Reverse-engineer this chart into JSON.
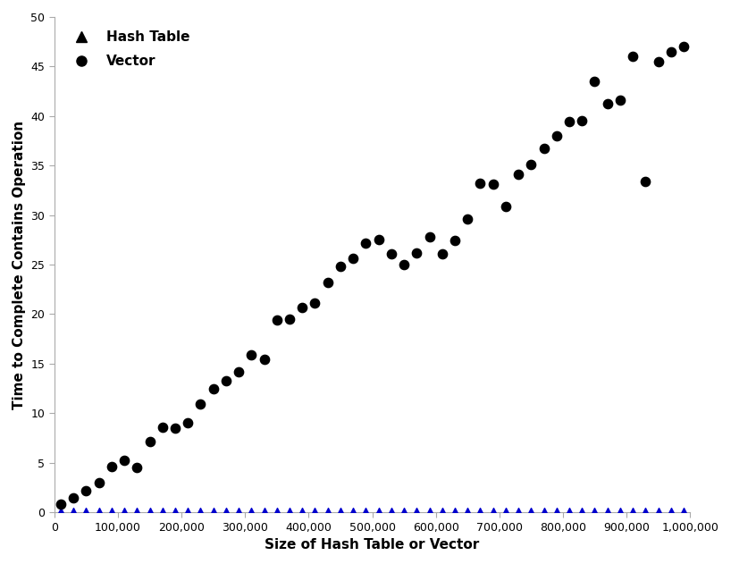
{
  "title": "",
  "xlabel": "Size of Hash Table or Vector",
  "ylabel": "Time to Complete Contains Operation",
  "xlim": [
    0,
    1000000
  ],
  "ylim": [
    0,
    50
  ],
  "xticks": [
    0,
    100000,
    200000,
    300000,
    400000,
    500000,
    600000,
    700000,
    800000,
    900000,
    1000000
  ],
  "yticks": [
    0,
    5,
    10,
    15,
    20,
    25,
    30,
    35,
    40,
    45,
    50
  ],
  "vector_x": [
    10000,
    30000,
    50000,
    70000,
    90000,
    110000,
    130000,
    150000,
    170000,
    190000,
    210000,
    230000,
    250000,
    270000,
    290000,
    310000,
    330000,
    350000,
    370000,
    390000,
    410000,
    430000,
    450000,
    470000,
    490000,
    510000,
    530000,
    550000,
    570000,
    590000,
    610000,
    630000,
    650000,
    670000,
    690000,
    710000,
    730000,
    750000,
    770000,
    790000,
    810000,
    830000,
    850000,
    870000,
    890000,
    910000,
    930000,
    950000,
    970000,
    990000
  ],
  "vector_y": [
    0.8,
    1.5,
    2.2,
    3.0,
    4.6,
    5.2,
    4.5,
    7.1,
    8.6,
    8.5,
    9.0,
    10.9,
    12.5,
    13.3,
    14.2,
    15.9,
    15.4,
    19.4,
    19.5,
    20.7,
    21.1,
    23.2,
    24.8,
    25.6,
    27.2,
    27.5,
    26.1,
    25.0,
    26.2,
    27.8,
    26.1,
    27.4,
    29.6,
    33.2,
    33.1,
    30.9,
    34.1,
    35.1,
    36.7,
    38.0,
    39.4,
    39.5,
    43.5,
    41.2,
    41.6,
    46.0,
    33.4,
    45.5,
    46.5,
    47.0
  ],
  "hash_x": [
    10000,
    30000,
    50000,
    70000,
    90000,
    110000,
    130000,
    150000,
    170000,
    190000,
    210000,
    230000,
    250000,
    270000,
    290000,
    310000,
    330000,
    350000,
    370000,
    390000,
    410000,
    430000,
    450000,
    470000,
    490000,
    510000,
    530000,
    550000,
    570000,
    590000,
    610000,
    630000,
    650000,
    670000,
    690000,
    710000,
    730000,
    750000,
    770000,
    790000,
    810000,
    830000,
    850000,
    870000,
    890000,
    910000,
    930000,
    950000,
    970000,
    990000
  ],
  "hash_y": [
    0.004,
    0.004,
    0.004,
    0.004,
    0.004,
    0.004,
    0.004,
    0.004,
    0.004,
    0.004,
    0.004,
    0.004,
    0.004,
    0.004,
    0.004,
    0.004,
    0.004,
    0.004,
    0.004,
    0.004,
    0.004,
    0.004,
    0.004,
    0.004,
    0.004,
    0.004,
    0.004,
    0.004,
    0.004,
    0.004,
    0.004,
    0.004,
    0.004,
    0.004,
    0.004,
    0.004,
    0.004,
    0.004,
    0.004,
    0.004,
    0.004,
    0.004,
    0.004,
    0.004,
    0.004,
    0.004,
    0.004,
    0.004,
    0.004,
    0.004
  ],
  "vector_color": "#000000",
  "hash_color": "#0000cd",
  "legend_hash_color": "#000000",
  "legend_vector_color": "#000000",
  "legend_hash_label": "Hash Table",
  "legend_vector_label": "Vector",
  "figsize": [
    8.18,
    6.31
  ],
  "dpi": 100
}
